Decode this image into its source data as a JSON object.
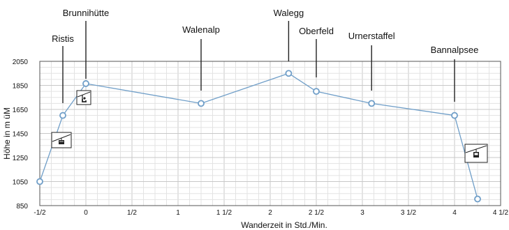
{
  "chart_data": {
    "type": "line",
    "xlabel": "Wanderzeit in Std./Min.",
    "ylabel": "Höhe in m üM",
    "xlim": [
      -0.5,
      4.5
    ],
    "ylim": [
      850,
      2050
    ],
    "grid": true,
    "xtick_labels": [
      "-1/2",
      "0",
      "1/2",
      "1",
      "1 1/2",
      "2",
      "2 1/2",
      "3",
      "3 1/2",
      "4",
      "4 1/2"
    ],
    "ytick_labels": [
      "850",
      "1050",
      "1250",
      "1450",
      "1650",
      "1850",
      "2050"
    ],
    "series": [
      {
        "color": "#6f9ec8",
        "points": [
          {
            "x": -0.5,
            "y": 1050
          },
          {
            "x": -0.25,
            "y": 1600
          },
          {
            "x": 0,
            "y": 1865
          },
          {
            "x": 1.25,
            "y": 1700
          },
          {
            "x": 2.2,
            "y": 1950
          },
          {
            "x": 2.5,
            "y": 1800
          },
          {
            "x": 3.1,
            "y": 1700
          },
          {
            "x": 4.0,
            "y": 1600
          },
          {
            "x": 4.25,
            "y": 905
          }
        ]
      }
    ],
    "annotations": [
      {
        "label": "Ristis",
        "x": -0.25
      },
      {
        "label": "Brunnihütte",
        "x": 0
      },
      {
        "label": "Walenalp",
        "x": 1.25
      },
      {
        "label": "Walegg",
        "x": 2.2
      },
      {
        "label": "Oberfeld",
        "x": 2.5
      },
      {
        "label": "Urnerstaffel",
        "x": 3.1
      },
      {
        "label": "Bannalpsee",
        "x": 4.0
      }
    ],
    "icons": [
      "cable-car-icon",
      "chairlift-icon",
      "gondola-icon"
    ]
  }
}
